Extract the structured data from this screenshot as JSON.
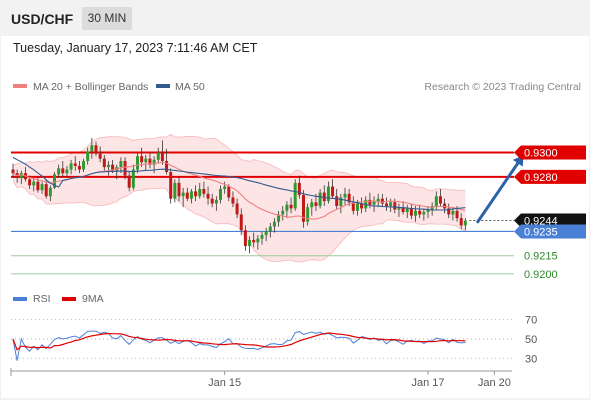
{
  "header": {
    "symbol": "USD/CHF",
    "timeframe": "30 MIN"
  },
  "timestamp": "Tuesday, January 17, 2023 7:11:46 AM CET",
  "credit": "Research © 2023 Trading Central",
  "colors": {
    "bollinger": "#f08080",
    "ma50": "#335a8f",
    "resistance": "#e00000",
    "support": "#4a7fd6",
    "target": "#5aa05a",
    "arrow": "#2b62a8",
    "candle_up": "#2e9a2e",
    "candle_down": "#c01818",
    "rsi": "#4a7fd6",
    "rsi_ma": "#e00000"
  },
  "chart_data": [
    {
      "type": "candlestick",
      "title": "USD/CHF",
      "legend": [
        {
          "name": "MA 20 + Bollinger Bands",
          "color": "#f08080"
        },
        {
          "name": "MA 50",
          "color": "#335a8f"
        }
      ],
      "legend_position": "top-left",
      "ylim": [
        0.9195,
        0.934
      ],
      "levels": [
        {
          "value": 0.93,
          "label": "0.9300",
          "kind": "resistance",
          "style": "tag"
        },
        {
          "value": 0.928,
          "label": "0.9280",
          "kind": "resistance",
          "style": "tag"
        },
        {
          "value": 0.9244,
          "label": "0.9244",
          "kind": "last-price",
          "style": "tag"
        },
        {
          "value": 0.9235,
          "label": "0.9235",
          "kind": "support",
          "style": "tag"
        },
        {
          "value": 0.9215,
          "label": "0.9215",
          "kind": "target",
          "style": "text"
        },
        {
          "value": 0.92,
          "label": "0.9200",
          "kind": "target",
          "style": "text"
        }
      ],
      "x_tick_labels": [
        "Jan 15",
        "Jan 17",
        "Jan 20"
      ],
      "x_tick_indices": [
        51,
        100,
        116
      ],
      "arrow": {
        "from_index": 112,
        "from_value": 0.9243,
        "to_index": 123,
        "to_value": 0.9298
      },
      "candles": [
        [
          0.9286,
          0.9291,
          0.928,
          0.9283
        ],
        [
          0.9283,
          0.9286,
          0.9275,
          0.9279
        ],
        [
          0.9279,
          0.9285,
          0.9274,
          0.9283
        ],
        [
          0.9283,
          0.9288,
          0.9276,
          0.9278
        ],
        [
          0.9278,
          0.9281,
          0.927,
          0.9273
        ],
        [
          0.9273,
          0.9279,
          0.9268,
          0.9276
        ],
        [
          0.9276,
          0.928,
          0.9267,
          0.9269
        ],
        [
          0.9269,
          0.9276,
          0.9266,
          0.9274
        ],
        [
          0.9274,
          0.9278,
          0.9262,
          0.9264
        ],
        [
          0.9264,
          0.9273,
          0.926,
          0.9271
        ],
        [
          0.9271,
          0.9284,
          0.927,
          0.9282
        ],
        [
          0.9282,
          0.929,
          0.9279,
          0.9287
        ],
        [
          0.9287,
          0.9293,
          0.928,
          0.9283
        ],
        [
          0.9283,
          0.9289,
          0.9279,
          0.9286
        ],
        [
          0.9286,
          0.9294,
          0.9282,
          0.9291
        ],
        [
          0.9291,
          0.9297,
          0.9285,
          0.9289
        ],
        [
          0.9289,
          0.9293,
          0.9283,
          0.9286
        ],
        [
          0.9286,
          0.9295,
          0.9284,
          0.9293
        ],
        [
          0.9293,
          0.9304,
          0.929,
          0.9301
        ],
        [
          0.9301,
          0.9312,
          0.9295,
          0.9306
        ],
        [
          0.9306,
          0.9309,
          0.9297,
          0.9299
        ],
        [
          0.9299,
          0.9305,
          0.9292,
          0.9295
        ],
        [
          0.9295,
          0.9298,
          0.9285,
          0.9288
        ],
        [
          0.9288,
          0.9293,
          0.9281,
          0.929
        ],
        [
          0.929,
          0.9294,
          0.9283,
          0.9285
        ],
        [
          0.9285,
          0.929,
          0.9278,
          0.9288
        ],
        [
          0.9288,
          0.9296,
          0.9283,
          0.9293
        ],
        [
          0.9293,
          0.9296,
          0.9278,
          0.9281
        ],
        [
          0.9281,
          0.9285,
          0.9268,
          0.9271
        ],
        [
          0.9271,
          0.929,
          0.9269,
          0.9286
        ],
        [
          0.9286,
          0.93,
          0.9283,
          0.9297
        ],
        [
          0.9297,
          0.9304,
          0.9288,
          0.9292
        ],
        [
          0.9292,
          0.9298,
          0.9285,
          0.9295
        ],
        [
          0.9295,
          0.9301,
          0.9287,
          0.929
        ],
        [
          0.929,
          0.9297,
          0.9283,
          0.9294
        ],
        [
          0.9294,
          0.9304,
          0.9291,
          0.93
        ],
        [
          0.93,
          0.931,
          0.929,
          0.9293
        ],
        [
          0.9293,
          0.9303,
          0.9282,
          0.9284
        ],
        [
          0.9284,
          0.9287,
          0.9258,
          0.9262
        ],
        [
          0.9262,
          0.9278,
          0.9259,
          0.9275
        ],
        [
          0.9275,
          0.928,
          0.926,
          0.9264
        ],
        [
          0.9264,
          0.9271,
          0.9255,
          0.9267
        ],
        [
          0.9267,
          0.9271,
          0.926,
          0.9262
        ],
        [
          0.9262,
          0.927,
          0.9258,
          0.9268
        ],
        [
          0.9268,
          0.9273,
          0.926,
          0.9264
        ],
        [
          0.9264,
          0.9275,
          0.9262,
          0.927
        ],
        [
          0.927,
          0.9276,
          0.9263,
          0.9266
        ],
        [
          0.9266,
          0.9272,
          0.9257,
          0.9262
        ],
        [
          0.9262,
          0.9266,
          0.9255,
          0.9258
        ],
        [
          0.9258,
          0.9264,
          0.9252,
          0.9261
        ],
        [
          0.9261,
          0.9273,
          0.9258,
          0.927
        ],
        [
          0.927,
          0.9276,
          0.9266,
          0.9272
        ],
        [
          0.9272,
          0.9274,
          0.926,
          0.9263
        ],
        [
          0.9263,
          0.9268,
          0.9255,
          0.9258
        ],
        [
          0.9258,
          0.9262,
          0.9246,
          0.9249
        ],
        [
          0.9249,
          0.9254,
          0.9232,
          0.9236
        ],
        [
          0.9236,
          0.924,
          0.9219,
          0.9223
        ],
        [
          0.9223,
          0.9231,
          0.9217,
          0.9228
        ],
        [
          0.9228,
          0.9234,
          0.9222,
          0.9226
        ],
        [
          0.9226,
          0.9232,
          0.922,
          0.9229
        ],
        [
          0.9229,
          0.9235,
          0.9224,
          0.9232
        ],
        [
          0.9232,
          0.9238,
          0.9227,
          0.9235
        ],
        [
          0.9235,
          0.9242,
          0.923,
          0.9239
        ],
        [
          0.9239,
          0.9246,
          0.9234,
          0.9243
        ],
        [
          0.9243,
          0.9252,
          0.9239,
          0.9249
        ],
        [
          0.9249,
          0.9256,
          0.9244,
          0.9252
        ],
        [
          0.9252,
          0.926,
          0.9246,
          0.9257
        ],
        [
          0.9257,
          0.9263,
          0.925,
          0.9254
        ],
        [
          0.9254,
          0.9278,
          0.9252,
          0.9275
        ],
        [
          0.9275,
          0.9281,
          0.9262,
          0.9265
        ],
        [
          0.9265,
          0.9269,
          0.9238,
          0.9243
        ],
        [
          0.9243,
          0.9258,
          0.924,
          0.9255
        ],
        [
          0.9255,
          0.9262,
          0.9248,
          0.9259
        ],
        [
          0.9259,
          0.9266,
          0.9252,
          0.9256
        ],
        [
          0.9256,
          0.927,
          0.9254,
          0.9267
        ],
        [
          0.9267,
          0.9273,
          0.9256,
          0.926
        ],
        [
          0.926,
          0.9276,
          0.9258,
          0.9272
        ],
        [
          0.9272,
          0.9278,
          0.9262,
          0.9264
        ],
        [
          0.9264,
          0.927,
          0.9253,
          0.9256
        ],
        [
          0.9256,
          0.9266,
          0.925,
          0.9263
        ],
        [
          0.9263,
          0.9271,
          0.9257,
          0.9266
        ],
        [
          0.9266,
          0.927,
          0.9256,
          0.9259
        ],
        [
          0.9259,
          0.9264,
          0.9249,
          0.9252
        ],
        [
          0.9252,
          0.9261,
          0.9248,
          0.9258
        ],
        [
          0.9258,
          0.9263,
          0.925,
          0.9254
        ],
        [
          0.9254,
          0.9264,
          0.9251,
          0.9261
        ],
        [
          0.9261,
          0.9267,
          0.9254,
          0.9257
        ],
        [
          0.9257,
          0.9264,
          0.9251,
          0.926
        ],
        [
          0.926,
          0.9266,
          0.9255,
          0.9262
        ],
        [
          0.9262,
          0.9266,
          0.9255,
          0.9258
        ],
        [
          0.9258,
          0.9263,
          0.9252,
          0.9256
        ],
        [
          0.9256,
          0.9262,
          0.9251,
          0.9259
        ],
        [
          0.9259,
          0.9262,
          0.925,
          0.9253
        ],
        [
          0.9253,
          0.9258,
          0.9247,
          0.9255
        ],
        [
          0.9255,
          0.926,
          0.9249,
          0.9251
        ],
        [
          0.9251,
          0.9257,
          0.9246,
          0.9254
        ],
        [
          0.9254,
          0.9258,
          0.9245,
          0.9248
        ],
        [
          0.9248,
          0.9256,
          0.9243,
          0.9252
        ],
        [
          0.9252,
          0.9257,
          0.9246,
          0.9249
        ],
        [
          0.9249,
          0.9254,
          0.9244,
          0.9251
        ],
        [
          0.9251,
          0.9256,
          0.9246,
          0.9253
        ],
        [
          0.9253,
          0.9259,
          0.9248,
          0.9256
        ],
        [
          0.9256,
          0.9268,
          0.9253,
          0.9264
        ],
        [
          0.9264,
          0.927,
          0.9256,
          0.9258
        ],
        [
          0.9258,
          0.9262,
          0.925,
          0.9254
        ],
        [
          0.9254,
          0.9258,
          0.9246,
          0.9249
        ],
        [
          0.9249,
          0.9255,
          0.9244,
          0.9252
        ],
        [
          0.9252,
          0.9256,
          0.9243,
          0.9246
        ],
        [
          0.9246,
          0.925,
          0.9237,
          0.924
        ],
        [
          0.924,
          0.9246,
          0.9236,
          0.9244
        ]
      ]
    },
    {
      "type": "line",
      "title": "RSI",
      "legend": [
        {
          "name": "RSI",
          "color": "#4a7fd6"
        },
        {
          "name": "9MA",
          "color": "#e00000"
        }
      ],
      "legend_position": "top-left",
      "ylim": [
        22,
        78
      ],
      "y_ticks": [
        70,
        50,
        30
      ],
      "x_tick_labels": [
        "Jan 15",
        "Jan 17",
        "Jan 20"
      ]
    }
  ]
}
